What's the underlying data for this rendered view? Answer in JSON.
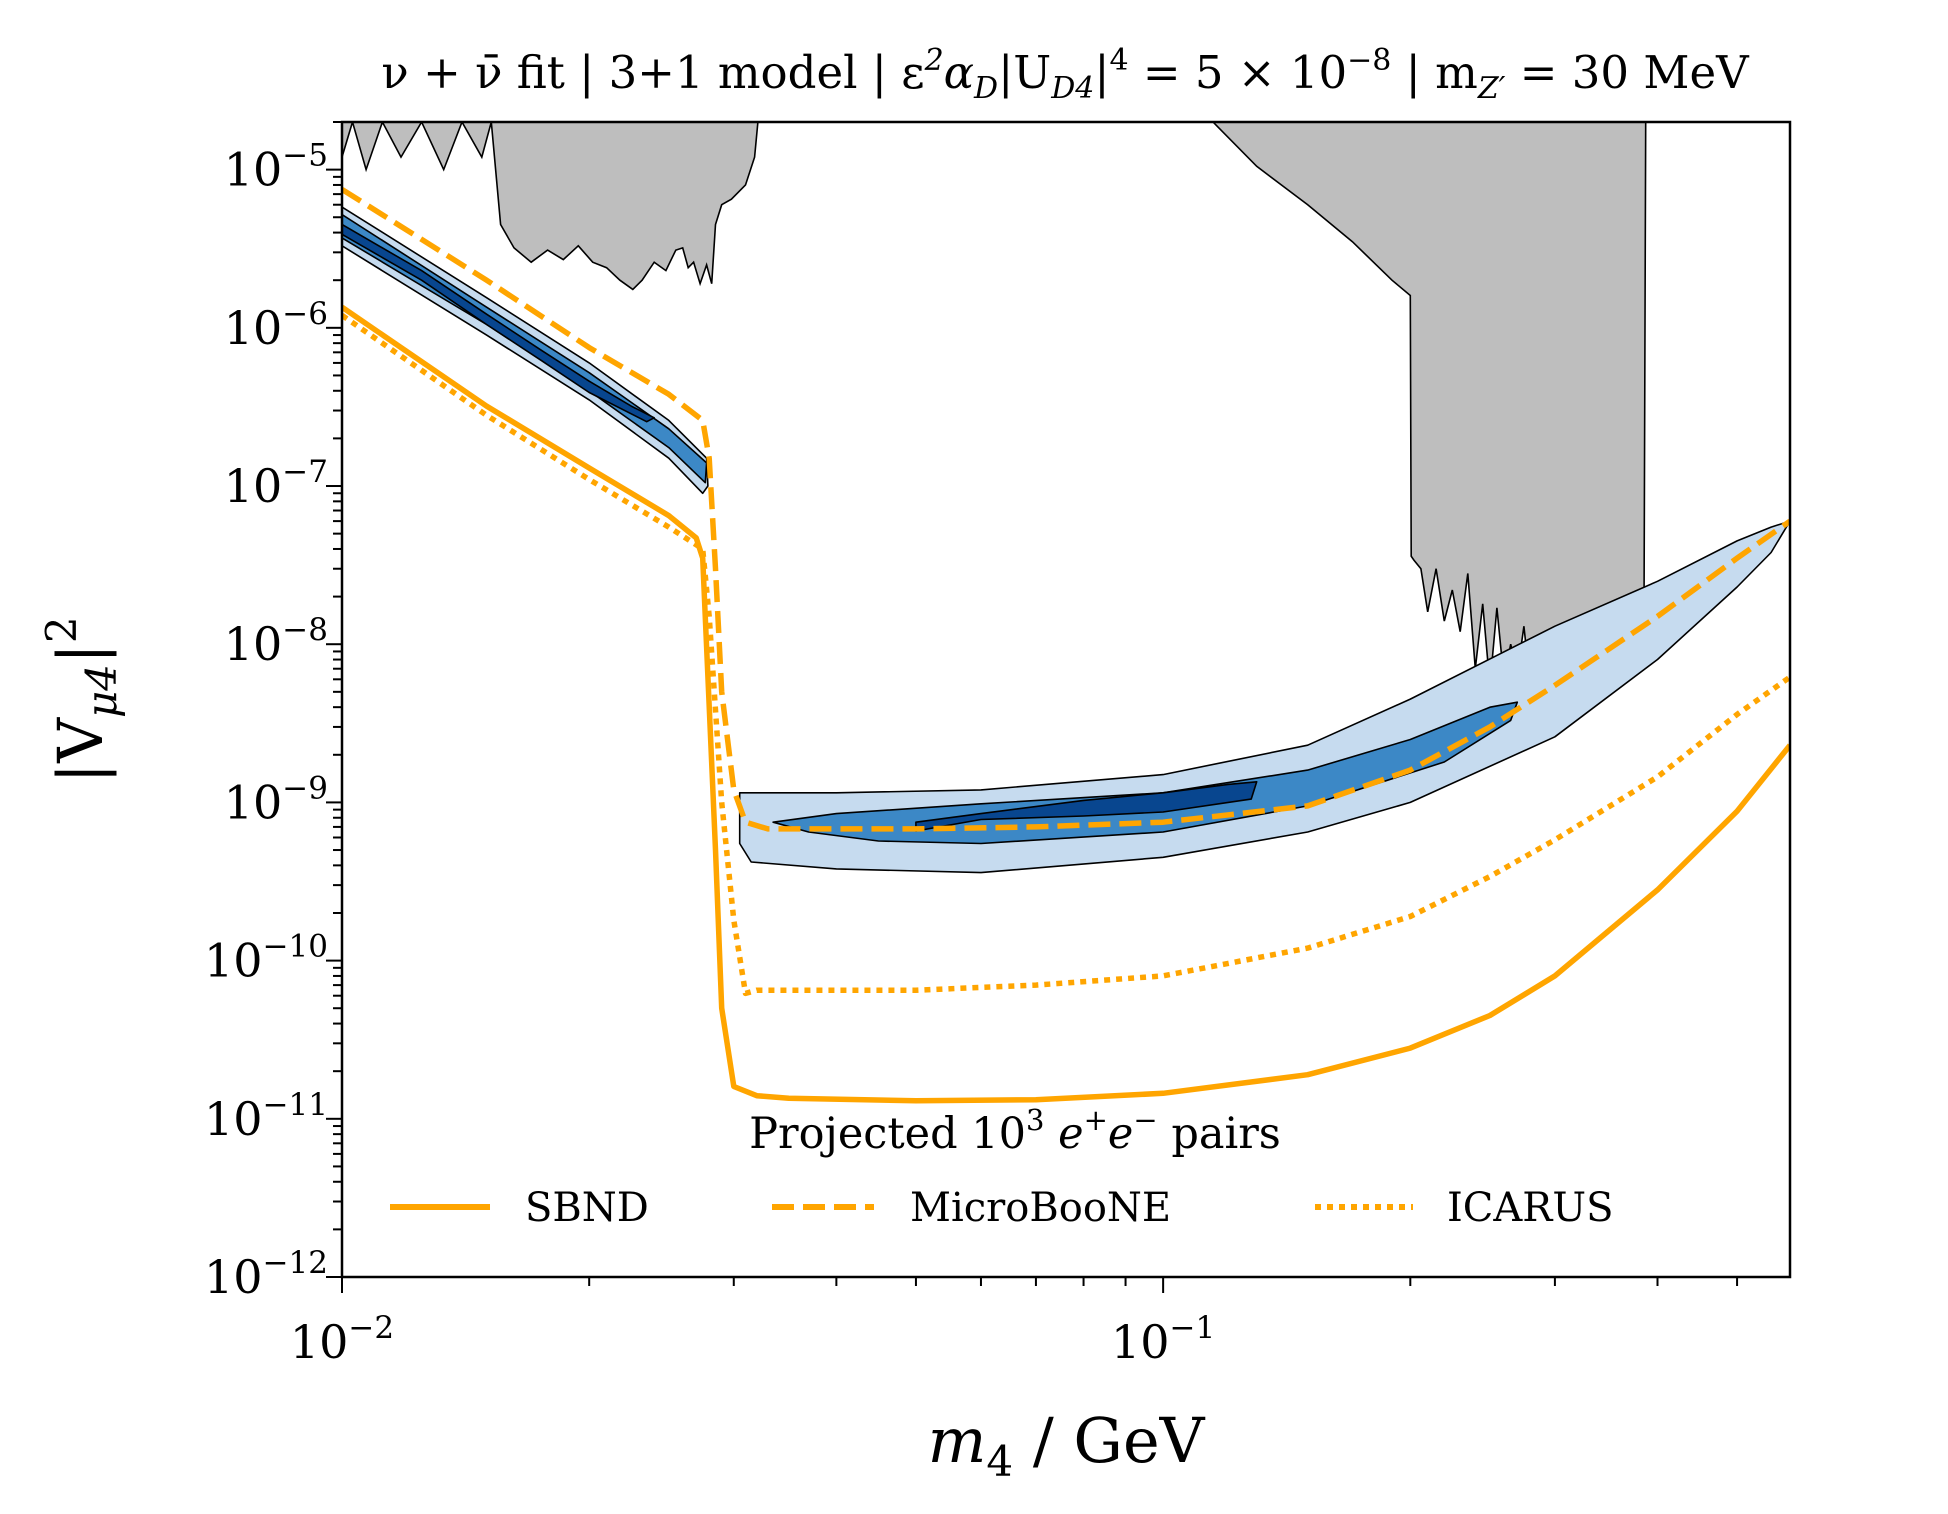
{
  "chart_data": {
    "type": "line",
    "title": {
      "part1": "ν + ν̄ fit | 3+1 model | ε",
      "part2": "α",
      "part3": "|U",
      "part4": "|",
      "part5": " = 5 × 10",
      "part6": " | m",
      "part7": " = 30 MeV",
      "sup_eps": "2",
      "sub_alpha": "D",
      "sub_U": "D4",
      "sup_U": "4",
      "exp": "−8",
      "sub_m": "Z′"
    },
    "xlabel": {
      "var": "m",
      "sub": "4",
      "unit": " / GeV"
    },
    "ylabel": {
      "pre": "|V",
      "sub": "μ4",
      "post": "|",
      "sup": "2"
    },
    "x_scale": "log",
    "y_scale": "log",
    "xlim": [
      0.01,
      0.58
    ],
    "ylim": [
      1e-12,
      2e-05
    ],
    "x_ticks": [
      {
        "value": 0.01,
        "base": "10",
        "exp": "−2"
      },
      {
        "value": 0.1,
        "base": "10",
        "exp": "−1"
      }
    ],
    "y_ticks": [
      {
        "value": 1e-05,
        "base": "10",
        "exp": "−5"
      },
      {
        "value": 1e-06,
        "base": "10",
        "exp": "−6"
      },
      {
        "value": 1e-07,
        "base": "10",
        "exp": "−7"
      },
      {
        "value": 1e-08,
        "base": "10",
        "exp": "−8"
      },
      {
        "value": 1e-09,
        "base": "10",
        "exp": "−9"
      },
      {
        "value": 1e-10,
        "base": "10",
        "exp": "−10"
      },
      {
        "value": 1e-11,
        "base": "10",
        "exp": "−11"
      },
      {
        "value": 1e-12,
        "base": "10",
        "exp": "−12"
      }
    ],
    "legend": {
      "placement": "lower center",
      "title": {
        "pre": "Projected 10",
        "sup": "3",
        "mid1": " e",
        "sup2": "+",
        "mid2": "e",
        "sup3": "−",
        "post": " pairs"
      },
      "entries": [
        {
          "label": "SBND",
          "style": "solid"
        },
        {
          "label": "MicroBooNE",
          "style": "dashed"
        },
        {
          "label": "ICARUS",
          "style": "dotted"
        }
      ]
    },
    "colors": {
      "projection": "#FFA500",
      "excluded": "#BEBEBE",
      "contour_1sigma": "#08468F",
      "contour_2sigma": "#3C88C6",
      "contour_3sigma": "#C6DBEF"
    },
    "series": [
      {
        "name": "SBND",
        "style": "solid",
        "x": [
          0.01,
          0.015,
          0.02,
          0.025,
          0.027,
          0.0275,
          0.0285,
          0.029,
          0.03,
          0.032,
          0.035,
          0.05,
          0.07,
          0.1,
          0.15,
          0.2,
          0.25,
          0.3,
          0.4,
          0.5,
          0.58
        ],
        "y": [
          1.35e-06,
          3.2e-07,
          1.3e-07,
          6.5e-08,
          4.7e-08,
          3.5e-08,
          5e-10,
          5e-11,
          1.6e-11,
          1.4e-11,
          1.35e-11,
          1.3e-11,
          1.32e-11,
          1.45e-11,
          1.9e-11,
          2.8e-11,
          4.5e-11,
          8e-11,
          2.8e-10,
          8.8e-10,
          2.3e-09
        ]
      },
      {
        "name": "MicroBooNE",
        "style": "dashed",
        "x": [
          0.01,
          0.015,
          0.02,
          0.025,
          0.0275,
          0.028,
          0.0285,
          0.029,
          0.03,
          0.031,
          0.033,
          0.05,
          0.07,
          0.1,
          0.15,
          0.2,
          0.25,
          0.3,
          0.4,
          0.5,
          0.58
        ],
        "y": [
          7.5e-06,
          2e-06,
          7.5e-07,
          3.8e-07,
          2.6e-07,
          1.5e-07,
          3e-08,
          5e-09,
          1.2e-09,
          7.5e-10,
          6.8e-10,
          6.8e-10,
          7e-10,
          7.5e-10,
          9.5e-10,
          1.6e-09,
          3e-09,
          5.5e-09,
          1.5e-08,
          3.5e-08,
          6e-08
        ]
      },
      {
        "name": "ICARUS",
        "style": "dotted",
        "x": [
          0.01,
          0.015,
          0.02,
          0.025,
          0.0275,
          0.028,
          0.029,
          0.03,
          0.031,
          0.032,
          0.035,
          0.05,
          0.07,
          0.1,
          0.15,
          0.2,
          0.25,
          0.3,
          0.4,
          0.5,
          0.58
        ],
        "y": [
          1.2e-06,
          2.8e-07,
          1.1e-07,
          5.5e-08,
          4e-08,
          1.5e-08,
          1e-09,
          1.8e-10,
          6.2e-11,
          6.5e-11,
          6.5e-11,
          6.5e-11,
          7e-11,
          8e-11,
          1.2e-10,
          1.9e-10,
          3.4e-10,
          5.8e-10,
          1.45e-09,
          3.6e-09,
          6.2e-09
        ]
      }
    ],
    "excluded_regions": [
      {
        "name": "left excluded region",
        "x": [
          0.01,
          0.0103,
          0.0107,
          0.0112,
          0.0118,
          0.0125,
          0.0133,
          0.014,
          0.0148,
          0.0152,
          0.0156,
          0.0162,
          0.017,
          0.0178,
          0.0186,
          0.0194,
          0.0202,
          0.021,
          0.0218,
          0.0226,
          0.0232,
          0.024,
          0.0248,
          0.0255,
          0.026,
          0.0264,
          0.0268,
          0.0273,
          0.0278,
          0.0282,
          0.0285,
          0.029,
          0.0298,
          0.031,
          0.0318,
          0.0321
        ],
        "y": [
          1.2e-05,
          2e-05,
          1e-05,
          2e-05,
          1.2e-05,
          2e-05,
          1e-05,
          2e-05,
          1.2e-05,
          2e-05,
          4.5e-06,
          3.2e-06,
          2.6e-06,
          3.1e-06,
          2.7e-06,
          3.3e-06,
          2.6e-06,
          2.4e-06,
          2e-06,
          1.75e-06,
          2e-06,
          2.6e-06,
          2.3e-06,
          3.1e-06,
          3.2e-06,
          2.4e-06,
          2.6e-06,
          1.9e-06,
          2.5e-06,
          1.9e-06,
          4.5e-06,
          6e-06,
          6.5e-06,
          8e-06,
          1.2e-05,
          2e-05
        ]
      },
      {
        "name": "right excluded region",
        "x": [
          0.115,
          0.13,
          0.15,
          0.17,
          0.19,
          0.2,
          0.2005,
          0.202,
          0.206,
          0.21,
          0.215,
          0.22,
          0.225,
          0.23,
          0.235,
          0.24,
          0.245,
          0.25,
          0.255,
          0.26,
          0.265,
          0.27,
          0.275,
          0.28,
          0.285,
          0.29,
          0.295,
          0.3,
          0.305,
          0.31,
          0.315,
          0.32,
          0.33,
          0.34,
          0.35,
          0.36,
          0.37,
          0.38,
          0.385,
          0.387
        ],
        "y": [
          2e-05,
          1.05e-05,
          6e-06,
          3.5e-06,
          2e-06,
          1.6e-06,
          3.6e-08,
          3.4e-08,
          3e-08,
          1.6e-08,
          3e-08,
          1.4e-08,
          2.2e-08,
          1.2e-08,
          2.8e-08,
          7e-09,
          1.8e-08,
          5.5e-09,
          1.7e-08,
          6e-09,
          1e-08,
          6.5e-09,
          1.3e-08,
          5.5e-09,
          8.5e-09,
          6e-09,
          1e-08,
          6e-09,
          8e-09,
          6e-09,
          9.5e-09,
          4e-09,
          8e-09,
          6e-09,
          9e-09,
          7e-09,
          9.5e-09,
          9e-09,
          1e-08,
          2e-05
        ]
      }
    ],
    "credible_contours": [
      {
        "name": "3-sigma low mass",
        "level": "3sigma",
        "outline": [
          [
            0.01,
            5.8e-06
          ],
          [
            0.015,
            1.55e-06
          ],
          [
            0.02,
            6e-07
          ],
          [
            0.025,
            2.6e-07
          ],
          [
            0.0278,
            1.5e-07
          ],
          [
            0.0279,
            1e-07
          ],
          [
            0.0275,
            9e-08
          ],
          [
            0.025,
            1.5e-07
          ],
          [
            0.02,
            3.5e-07
          ],
          [
            0.015,
            9e-07
          ],
          [
            0.01,
            3.3e-06
          ]
        ]
      },
      {
        "name": "2-sigma low mass",
        "level": "2sigma",
        "outline": [
          [
            0.01,
            5.2e-06
          ],
          [
            0.015,
            1.35e-06
          ],
          [
            0.02,
            5.2e-07
          ],
          [
            0.025,
            2.3e-07
          ],
          [
            0.0278,
            1.4e-07
          ],
          [
            0.0277,
            1.05e-07
          ],
          [
            0.025,
            1.75e-07
          ],
          [
            0.02,
            4e-07
          ],
          [
            0.015,
            1.05e-06
          ],
          [
            0.01,
            3.7e-06
          ]
        ]
      },
      {
        "name": "1-sigma low mass",
        "level": "1sigma",
        "outline": [
          [
            0.01,
            4.5e-06
          ],
          [
            0.0125,
            2.3e-06
          ],
          [
            0.015,
            1.22e-06
          ],
          [
            0.0175,
            7.2e-07
          ],
          [
            0.02,
            4.6e-07
          ],
          [
            0.0225,
            3.2e-07
          ],
          [
            0.024,
            2.7e-07
          ],
          [
            0.0235,
            2.55e-07
          ],
          [
            0.02,
            3.9e-07
          ],
          [
            0.0175,
            6.2e-07
          ],
          [
            0.015,
            1.05e-06
          ],
          [
            0.0125,
            2e-06
          ],
          [
            0.01,
            3.9e-06
          ]
        ]
      },
      {
        "name": "3-sigma high mass",
        "level": "3sigma",
        "outline": [
          [
            0.0305,
            1.15e-09
          ],
          [
            0.04,
            1.15e-09
          ],
          [
            0.06,
            1.2e-09
          ],
          [
            0.1,
            1.5e-09
          ],
          [
            0.15,
            2.3e-09
          ],
          [
            0.2,
            4.5e-09
          ],
          [
            0.3,
            1.3e-08
          ],
          [
            0.4,
            2.5e-08
          ],
          [
            0.5,
            4.5e-08
          ],
          [
            0.55,
            5.5e-08
          ],
          [
            0.58,
            6e-08
          ],
          [
            0.55,
            3.8e-08
          ],
          [
            0.5,
            2.3e-08
          ],
          [
            0.4,
            8e-09
          ],
          [
            0.3,
            2.6e-09
          ],
          [
            0.2,
            1e-09
          ],
          [
            0.15,
            6.5e-10
          ],
          [
            0.1,
            4.5e-10
          ],
          [
            0.06,
            3.6e-10
          ],
          [
            0.04,
            3.8e-10
          ],
          [
            0.0315,
            4.2e-10
          ],
          [
            0.0305,
            5.5e-10
          ]
        ]
      },
      {
        "name": "2-sigma high mass",
        "level": "2sigma",
        "outline": [
          [
            0.0335,
            7.5e-10
          ],
          [
            0.04,
            8.5e-10
          ],
          [
            0.06,
            9.8e-10
          ],
          [
            0.1,
            1.15e-09
          ],
          [
            0.15,
            1.6e-09
          ],
          [
            0.2,
            2.5e-09
          ],
          [
            0.25,
            4e-09
          ],
          [
            0.27,
            4.3e-09
          ],
          [
            0.265,
            3.3e-09
          ],
          [
            0.22,
            1.8e-09
          ],
          [
            0.15,
            9.5e-10
          ],
          [
            0.1,
            6.5e-10
          ],
          [
            0.06,
            5.5e-10
          ],
          [
            0.045,
            5.7e-10
          ],
          [
            0.037,
            6.5e-10
          ]
        ]
      },
      {
        "name": "1-sigma high mass",
        "level": "1sigma",
        "outline": [
          [
            0.05,
            7.5e-10
          ],
          [
            0.06,
            8.5e-10
          ],
          [
            0.08,
            1.03e-09
          ],
          [
            0.1,
            1.15e-09
          ],
          [
            0.12,
            1.3e-09
          ],
          [
            0.13,
            1.35e-09
          ],
          [
            0.128,
            1.05e-09
          ],
          [
            0.1,
            8.7e-10
          ],
          [
            0.08,
            8.2e-10
          ],
          [
            0.06,
            7.8e-10
          ],
          [
            0.05,
            6.6e-10
          ]
        ]
      }
    ]
  }
}
